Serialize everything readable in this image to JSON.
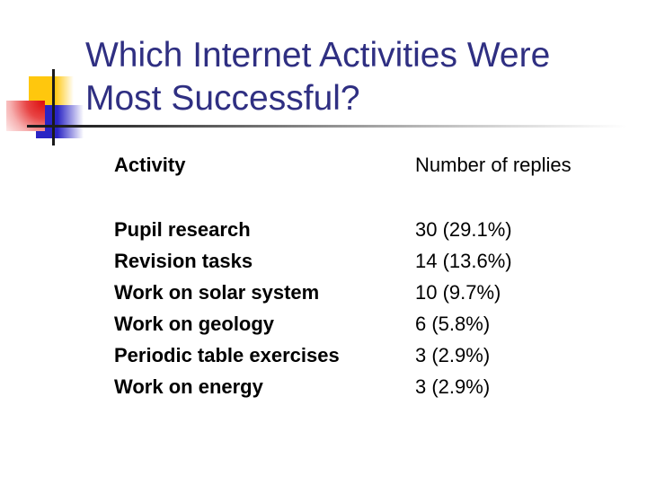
{
  "slide": {
    "kind": "presentation-slide",
    "title": {
      "line1": "Which Internet Activities Were",
      "line2": "Most Successful?"
    },
    "table": {
      "headers": {
        "activity": "Activity",
        "replies": "Number of replies"
      },
      "rows": [
        {
          "activity": "Pupil research",
          "replies": "30 (29.1%)"
        },
        {
          "activity": "Revision tasks",
          "replies": "14 (13.6%)"
        },
        {
          "activity": "Work on solar system",
          "replies": "10 (9.7%)"
        },
        {
          "activity": "Work on geology",
          "replies": "6 (5.8%)"
        },
        {
          "activity": "Periodic table exercises",
          "replies": "3 (2.9%)"
        },
        {
          "activity": "Work on energy",
          "replies": "3 (2.9%)"
        }
      ]
    },
    "colors": {
      "background": "#ffffff",
      "title_text": "#2f2f82",
      "body_text": "#000000",
      "accent_yellow": "#ffc70d",
      "accent_red": "#dd1111",
      "accent_blue": "#2a24c4",
      "crosshair_line": "#1a1a1a"
    }
  }
}
